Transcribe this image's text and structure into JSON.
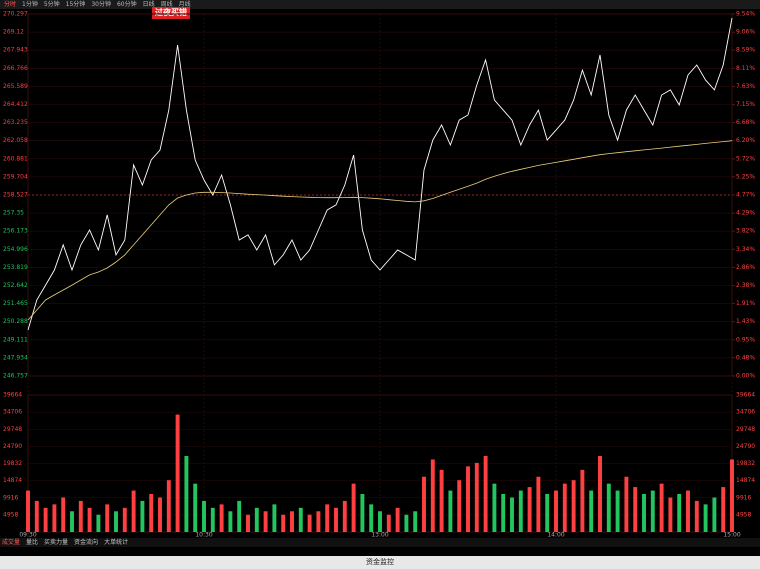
{
  "toolbar": {
    "tabs": [
      "分时",
      "1分钟",
      "5分钟",
      "15分钟",
      "30分钟",
      "60分钟",
      "日线",
      "周线",
      "月线"
    ]
  },
  "badge": "过夜买错",
  "tabs": [
    "成交量",
    "量比",
    "买卖力量",
    "资金流向",
    "大单统计"
  ],
  "footer": "资金监控",
  "chart_data": [
    {
      "type": "line",
      "x": [
        0,
        3,
        6,
        9,
        12,
        15,
        18,
        21,
        24,
        27,
        30,
        33,
        36,
        39,
        42,
        45,
        48,
        51,
        54,
        57,
        60,
        63,
        66,
        69,
        72,
        75,
        78,
        81,
        84,
        87,
        90,
        93,
        96,
        99,
        102,
        105,
        108,
        111,
        114,
        117,
        120,
        123,
        126,
        129,
        132,
        135,
        138,
        141,
        144,
        147,
        150,
        153,
        156,
        159,
        162,
        165,
        168,
        171,
        174,
        177,
        180,
        183,
        186,
        189,
        192,
        195,
        198,
        201,
        204,
        207,
        210,
        213,
        216,
        219,
        222,
        225,
        228,
        231,
        234,
        237,
        240
      ],
      "series": [
        {
          "color": "#ffffff",
          "values": [
            249.75,
            251.7,
            252.67,
            253.65,
            255.28,
            253.65,
            255.28,
            256.25,
            254.95,
            257.23,
            254.63,
            255.6,
            260.48,
            259.18,
            260.8,
            261.45,
            264.05,
            268.28,
            264.05,
            260.8,
            259.5,
            258.53,
            259.83,
            257.88,
            255.6,
            255.93,
            254.95,
            255.93,
            253.98,
            254.63,
            255.6,
            254.3,
            254.95,
            256.25,
            257.55,
            257.88,
            259.18,
            261.13,
            256.25,
            254.3,
            253.65,
            254.3,
            254.95,
            254.63,
            254.3,
            260.15,
            262.1,
            263.08,
            261.78,
            263.4,
            263.73,
            265.68,
            267.31,
            264.7,
            264.05,
            263.4,
            261.78,
            263.08,
            264.05,
            262.1,
            262.75,
            263.4,
            264.7,
            266.65,
            265.03,
            267.63,
            263.73,
            262.1,
            264.05,
            265.03,
            264.05,
            263.08,
            265.03,
            265.36,
            264.38,
            266.33,
            266.98,
            266.0,
            265.36,
            266.98,
            270.04
          ]
        },
        {
          "color": "#e8d27a",
          "values": [
            250.4,
            251.05,
            251.7,
            252.03,
            252.35,
            252.67,
            253.0,
            253.33,
            253.52,
            253.78,
            254.17,
            254.63,
            255.28,
            255.93,
            256.58,
            257.23,
            257.88,
            258.33,
            258.53,
            258.66,
            258.7,
            258.7,
            258.68,
            258.66,
            258.62,
            258.58,
            258.55,
            258.52,
            258.48,
            258.45,
            258.42,
            258.4,
            258.38,
            258.36,
            258.35,
            258.35,
            258.36,
            258.38,
            258.36,
            258.32,
            258.28,
            258.22,
            258.17,
            258.12,
            258.08,
            258.15,
            258.3,
            258.5,
            258.7,
            258.9,
            259.1,
            259.3,
            259.55,
            259.75,
            259.92,
            260.07,
            260.2,
            260.32,
            260.45,
            260.55,
            260.65,
            260.75,
            260.85,
            260.95,
            261.05,
            261.15,
            261.22,
            261.28,
            261.34,
            261.4,
            261.46,
            261.52,
            261.58,
            261.64,
            261.7,
            261.76,
            261.82,
            261.88,
            261.94,
            262.0,
            262.06
          ]
        }
      ],
      "baseline": 258.527,
      "xlim": [
        0,
        240
      ],
      "xticks": [
        {
          "value": 0,
          "label": "09:30"
        },
        {
          "value": 60,
          "label": "10:30"
        },
        {
          "value": 120,
          "label": "13:00"
        },
        {
          "value": 180,
          "label": "14:00"
        },
        {
          "value": 240,
          "label": "15:00"
        }
      ],
      "ylim": [
        246.757,
        270.297
      ],
      "yticks": [
        246.757,
        247.934,
        249.111,
        250.288,
        251.465,
        252.642,
        253.819,
        254.996,
        256.173,
        257.35,
        258.527,
        259.704,
        260.881,
        262.058,
        263.235,
        264.412,
        265.589,
        266.766,
        267.943,
        269.12,
        270.297
      ],
      "y2lim": [
        0,
        9.54
      ],
      "y2ticks": [
        {
          "value": 0,
          "label": "0.00%"
        },
        {
          "value": 0.48,
          "label": "0.48%"
        },
        {
          "value": 0.95,
          "label": "0.95%"
        },
        {
          "value": 1.43,
          "label": "1.43%"
        },
        {
          "value": 1.91,
          "label": "1.91%"
        },
        {
          "value": 2.38,
          "label": "2.38%"
        },
        {
          "value": 2.86,
          "label": "2.86%"
        },
        {
          "value": 3.34,
          "label": "3.34%"
        },
        {
          "value": 3.82,
          "label": "3.82%"
        },
        {
          "value": 4.29,
          "label": "4.29%"
        },
        {
          "value": 4.77,
          "label": "4.77%"
        },
        {
          "value": 5.25,
          "label": "5.25%"
        },
        {
          "value": 5.72,
          "label": "5.72%"
        },
        {
          "value": 6.2,
          "label": "6.20%"
        },
        {
          "value": 6.68,
          "label": "6.68%"
        },
        {
          "value": 7.15,
          "label": "7.15%"
        },
        {
          "value": 7.63,
          "label": "7.63%"
        },
        {
          "value": 8.11,
          "label": "8.11%"
        },
        {
          "value": 8.59,
          "label": "8.59%"
        },
        {
          "value": 9.06,
          "label": "9.06%"
        },
        {
          "value": 9.54,
          "label": "9.54%"
        }
      ],
      "up_color": "#ff4040",
      "down_color": "#22c55e",
      "baseline_color": "#c03030"
    },
    {
      "type": "bar",
      "x": [
        0,
        3,
        6,
        9,
        12,
        15,
        18,
        21,
        24,
        27,
        30,
        33,
        36,
        39,
        42,
        45,
        48,
        51,
        54,
        57,
        60,
        63,
        66,
        69,
        72,
        75,
        78,
        81,
        84,
        87,
        90,
        93,
        96,
        99,
        102,
        105,
        108,
        111,
        114,
        117,
        120,
        123,
        126,
        129,
        132,
        135,
        138,
        141,
        144,
        147,
        150,
        153,
        156,
        159,
        162,
        165,
        168,
        171,
        174,
        177,
        180,
        183,
        186,
        189,
        192,
        195,
        198,
        201,
        204,
        207,
        210,
        213,
        216,
        219,
        222,
        225,
        228,
        231,
        234,
        237,
        240
      ],
      "values": [
        12000,
        9000,
        7000,
        8000,
        10000,
        6000,
        9000,
        7000,
        5000,
        8000,
        6000,
        7000,
        12000,
        9000,
        11000,
        10000,
        15000,
        34000,
        22000,
        14000,
        9000,
        7000,
        8000,
        6000,
        9000,
        5000,
        7000,
        6000,
        8000,
        5000,
        6000,
        7000,
        5000,
        6000,
        8000,
        7000,
        9000,
        14000,
        11000,
        8000,
        6000,
        5000,
        7000,
        5000,
        6000,
        16000,
        21000,
        18000,
        12000,
        15000,
        19000,
        20000,
        22000,
        14000,
        11000,
        10000,
        12000,
        13000,
        16000,
        11000,
        12000,
        14000,
        15000,
        18000,
        12000,
        22000,
        14000,
        12000,
        16000,
        13000,
        11000,
        12000,
        14000,
        10000,
        11000,
        12000,
        9000,
        8000,
        10000,
        13000,
        21000
      ],
      "xlim": [
        0,
        240
      ],
      "ylim": [
        0,
        39664
      ],
      "yticks": [
        4958,
        9916,
        14874,
        19832,
        24790,
        29748,
        34706,
        39664
      ],
      "up_color": "#ff4040",
      "down_color": "#22c55e"
    }
  ]
}
